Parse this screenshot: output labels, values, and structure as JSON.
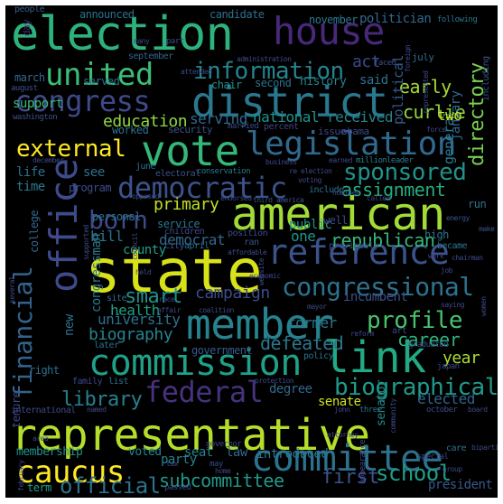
{
  "word_cloud": {
    "background": "#000000",
    "words": [
      {
        "text": "representative",
        "color": "#b5de2b"
      },
      {
        "text": "state",
        "color": "#d8e219"
      },
      {
        "text": "member",
        "color": "#26828e"
      },
      {
        "text": "election",
        "color": "#2db27d"
      },
      {
        "text": "district",
        "color": "#2a788e"
      },
      {
        "text": "american",
        "color": "#a2da37"
      },
      {
        "text": "vote",
        "color": "#35b779"
      },
      {
        "text": "house",
        "color": "#482878"
      },
      {
        "text": "link",
        "color": "#22a884"
      },
      {
        "text": "committee",
        "color": "#2c728e"
      },
      {
        "text": "commission",
        "color": "#1fa088"
      },
      {
        "text": "reference",
        "color": "#3b528b"
      },
      {
        "text": "office",
        "color": "#3e4a89"
      },
      {
        "text": "legislation",
        "color": "#31688e"
      },
      {
        "text": "united",
        "color": "#3dbc74"
      },
      {
        "text": "congress",
        "color": "#3e4989"
      },
      {
        "text": "democratic",
        "color": "#3b528b"
      },
      {
        "text": "federal",
        "color": "#46327e"
      },
      {
        "text": "information",
        "color": "#25838e"
      },
      {
        "text": "congressional",
        "color": "#2c728e"
      },
      {
        "text": "caucus",
        "color": "#fde725"
      },
      {
        "text": "financial",
        "color": "#33638d"
      },
      {
        "text": "sponsored",
        "color": "#20928c"
      },
      {
        "text": "biographical",
        "color": "#1f998a"
      },
      {
        "text": "profile",
        "color": "#4ac16d"
      },
      {
        "text": "external",
        "color": "#fde725"
      },
      {
        "text": "born",
        "color": "#3e4989"
      },
      {
        "text": "directory",
        "color": "#7ad151"
      },
      {
        "text": "library",
        "color": "#26828e"
      },
      {
        "text": "official",
        "color": "#2c728e"
      },
      {
        "text": "school",
        "color": "#1f9e89"
      },
      {
        "text": "subcommittee",
        "color": "#1f998a"
      },
      {
        "text": "first",
        "color": "#3b528b"
      },
      {
        "text": "smart",
        "color": "#20928c"
      },
      {
        "text": "campaign",
        "color": "#3e4a89"
      },
      {
        "text": "education",
        "color": "#8fd744"
      },
      {
        "text": "republican",
        "color": "#35b779"
      },
      {
        "text": "biography",
        "color": "#25838e"
      },
      {
        "text": "university",
        "color": "#2d708e"
      },
      {
        "text": "defeated",
        "color": "#2a788e"
      },
      {
        "text": "career",
        "color": "#2db27d"
      },
      {
        "text": "primary",
        "color": "#c2df23"
      },
      {
        "text": "assignment",
        "color": "#25ab82"
      },
      {
        "text": "received",
        "color": "#26828e"
      },
      {
        "text": "national",
        "color": "#1f948c"
      },
      {
        "text": "serving",
        "color": "#31688e"
      },
      {
        "text": "curlie",
        "color": "#90d743"
      },
      {
        "text": "early",
        "color": "#a5db36"
      },
      {
        "text": "act",
        "color": "#3e4989"
      },
      {
        "text": "general",
        "color": "#2a788e"
      },
      {
        "text": "political",
        "color": "#365c8d"
      },
      {
        "text": "january",
        "color": "#31688e"
      },
      {
        "text": "elected",
        "color": "#33638d"
      },
      {
        "text": "year",
        "color": "#addc30"
      },
      {
        "text": "one",
        "color": "#1f968b"
      },
      {
        "text": "public",
        "color": "#1f968b"
      },
      {
        "text": "democrat",
        "color": "#31688e"
      },
      {
        "text": "bill",
        "color": "#2c728e"
      },
      {
        "text": "county",
        "color": "#1fa188"
      },
      {
        "text": "congressman",
        "color": "#2a788e"
      },
      {
        "text": "health",
        "color": "#1fa088"
      },
      {
        "text": "former",
        "color": "#2a788e"
      },
      {
        "text": "incumbent",
        "color": "#3b528b"
      },
      {
        "text": "government",
        "color": "#38598c"
      },
      {
        "text": "senate",
        "color": "#d0e11c"
      },
      {
        "text": "senator",
        "color": "#228b8d"
      },
      {
        "text": "degree",
        "color": "#31688e"
      },
      {
        "text": "introduced",
        "color": "#2a788e"
      },
      {
        "text": "membership",
        "color": "#21918c"
      },
      {
        "text": "voted",
        "color": "#25838e"
      },
      {
        "text": "seat",
        "color": "#26828e"
      },
      {
        "text": "law",
        "color": "#31688e"
      },
      {
        "text": "party",
        "color": "#25838e"
      },
      {
        "text": "president",
        "color": "#38588c"
      },
      {
        "text": "term",
        "color": "#1fa088"
      },
      {
        "text": "support",
        "color": "#3aba76"
      },
      {
        "text": "life",
        "color": "#2d708e"
      },
      {
        "text": "time",
        "color": "#29798e"
      },
      {
        "text": "see",
        "color": "#2d708e"
      },
      {
        "text": "program",
        "color": "#3e4c8a"
      },
      {
        "text": "new",
        "color": "#2c728e"
      },
      {
        "text": "tenure",
        "color": "#3e4989"
      },
      {
        "text": "right",
        "color": "#2d708e"
      },
      {
        "text": "two",
        "color": "#c8e020"
      },
      {
        "text": "served",
        "color": "#2d708e"
      },
      {
        "text": "march",
        "color": "#31688e"
      },
      {
        "text": "august",
        "color": "#3b528b"
      },
      {
        "text": "washington",
        "color": "#3b528b"
      },
      {
        "text": "worked",
        "color": "#2d708e"
      },
      {
        "text": "security",
        "color": "#3b528b"
      },
      {
        "text": "married",
        "color": "#3e4989"
      },
      {
        "text": "percent",
        "color": "#414487"
      },
      {
        "text": "issue",
        "color": "#3e4989"
      },
      {
        "text": "obama",
        "color": "#3e4989"
      },
      {
        "text": "said",
        "color": "#2c728e"
      },
      {
        "text": "history",
        "color": "#26828e"
      },
      {
        "text": "second",
        "color": "#2c728e"
      },
      {
        "text": "chair",
        "color": "#21918c"
      },
      {
        "text": "november",
        "color": "#2a788e"
      },
      {
        "text": "politician",
        "color": "#31688e"
      },
      {
        "text": "candidate",
        "color": "#2c728e"
      },
      {
        "text": "announced",
        "color": "#2c728e"
      },
      {
        "text": "people",
        "color": "#365c8d"
      },
      {
        "text": "day",
        "color": "#482878"
      },
      {
        "text": "following",
        "color": "#2a788e"
      },
      {
        "text": "including",
        "color": "#3b528b"
      },
      {
        "text": "faced",
        "color": "#3b528b"
      },
      {
        "text": "foreign",
        "color": "#3e4989"
      },
      {
        "text": "july",
        "color": "#31688e"
      },
      {
        "text": "september",
        "color": "#33638d"
      },
      {
        "text": "administration",
        "color": "#3e4989"
      },
      {
        "text": "many",
        "color": "#3e4989"
      },
      {
        "text": "part",
        "color": "#3e4989"
      },
      {
        "text": "represented",
        "color": "#3e4989"
      },
      {
        "text": "force",
        "color": "#3e4989"
      },
      {
        "text": "december",
        "color": "#3e4989"
      },
      {
        "text": "june",
        "color": "#2c728e"
      },
      {
        "text": "electoral",
        "color": "#3b528b"
      },
      {
        "text": "conservation",
        "color": "#2a788e"
      },
      {
        "text": "business",
        "color": "#3e4989"
      },
      {
        "text": "re election",
        "color": "#3e4989"
      },
      {
        "text": "voting",
        "color": "#3e4989"
      },
      {
        "text": "earned",
        "color": "#3e4989"
      },
      {
        "text": "million",
        "color": "#26828e"
      },
      {
        "text": "leader",
        "color": "#2a788e"
      },
      {
        "text": "include",
        "color": "#2c728e"
      },
      {
        "text": "third",
        "color": "#3b528b"
      },
      {
        "text": "america",
        "color": "#3b528b"
      },
      {
        "text": "endorsed",
        "color": "#3e4989"
      },
      {
        "text": "nominee",
        "color": "#3e4989"
      },
      {
        "text": "called",
        "color": "#3e4989"
      },
      {
        "text": "energy",
        "color": "#3b528b"
      },
      {
        "text": "make",
        "color": "#3b528b"
      },
      {
        "text": "high",
        "color": "#2c728e"
      },
      {
        "text": "became",
        "color": "#2c728e"
      },
      {
        "text": "work",
        "color": "#3e4989"
      },
      {
        "text": "chairman",
        "color": "#3e4989"
      },
      {
        "text": "run",
        "color": "#2c728e"
      },
      {
        "text": "well",
        "color": "#3e4989"
      },
      {
        "text": "service",
        "color": "#2a788e"
      },
      {
        "text": "children",
        "color": "#3e4989"
      },
      {
        "text": "position",
        "color": "#3e4989"
      },
      {
        "text": "ran",
        "color": "#3b528b"
      },
      {
        "text": "previously",
        "color": "#3e4989"
      },
      {
        "text": "affordable",
        "color": "#3e4989"
      },
      {
        "text": "city",
        "color": "#3b528b"
      },
      {
        "text": "april",
        "color": "#2c728e"
      },
      {
        "text": "personal",
        "color": "#2c728e"
      },
      {
        "text": "college",
        "color": "#31688e"
      },
      {
        "text": "supported",
        "color": "#3e4989"
      },
      {
        "text": "council",
        "color": "#3e4989"
      },
      {
        "text": "held",
        "color": "#3e4989"
      },
      {
        "text": "job",
        "color": "#3e4989"
      },
      {
        "text": "economic",
        "color": "#3e4989"
      },
      {
        "text": "website",
        "color": "#3e4989"
      },
      {
        "text": "affair",
        "color": "#3e4989"
      },
      {
        "text": "coalition",
        "color": "#3e4989"
      },
      {
        "text": "race",
        "color": "#3e4989"
      },
      {
        "text": "site",
        "color": "#2c728e"
      },
      {
        "text": "several",
        "color": "#3e4989"
      },
      {
        "text": "reform",
        "color": "#3e4989"
      },
      {
        "text": "art",
        "color": "#3e4989"
      },
      {
        "text": "graduated",
        "color": "#3e4989"
      },
      {
        "text": "saying",
        "color": "#3e4989"
      },
      {
        "text": "women",
        "color": "#3e4989"
      },
      {
        "text": "later",
        "color": "#2c728e"
      },
      {
        "text": "policy",
        "color": "#2c728e"
      },
      {
        "text": "japan",
        "color": "#3e4989"
      },
      {
        "text": "protection",
        "color": "#3e4989"
      },
      {
        "text": "family",
        "color": "#3e4989"
      },
      {
        "text": "list",
        "color": "#2c728e"
      },
      {
        "text": "international",
        "color": "#3e4989"
      },
      {
        "text": "named",
        "color": "#3e4989"
      },
      {
        "text": "john",
        "color": "#3e4989"
      },
      {
        "text": "three",
        "color": "#2c728e"
      },
      {
        "text": "october",
        "color": "#3e4989"
      },
      {
        "text": "board",
        "color": "#3e4989"
      },
      {
        "text": "attorney",
        "color": "#3e4989"
      },
      {
        "text": "community",
        "color": "#3e4989"
      },
      {
        "text": "may",
        "color": "#3e4989"
      },
      {
        "text": "governor",
        "color": "#3e4989"
      },
      {
        "text": "area",
        "color": "#3e4989"
      },
      {
        "text": "appearance",
        "color": "#3e4989"
      },
      {
        "text": "special",
        "color": "#3e4989"
      },
      {
        "text": "care",
        "color": "#2c728e"
      },
      {
        "text": "bipartisan",
        "color": "#3e4989"
      },
      {
        "text": "group",
        "color": "#3e4989"
      },
      {
        "text": "home",
        "color": "#3e4989"
      },
      {
        "text": "passed",
        "color": "#3e4989"
      },
      {
        "text": "tax",
        "color": "#3e4989"
      },
      {
        "text": "february",
        "color": "#3e4989"
      },
      {
        "text": "attended",
        "color": "#3e4989"
      },
      {
        "text": "opposed",
        "color": "#3e4989"
      },
      {
        "text": "mayor",
        "color": "#3e4989"
      }
    ]
  }
}
